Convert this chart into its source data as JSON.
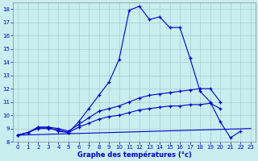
{
  "xlabel": "Graphe des températures (°c)",
  "background_color": "#c8eef0",
  "grid_color": "#aacccc",
  "line_color": "#0000cc",
  "xlim": [
    -0.5,
    23.5
  ],
  "ylim": [
    8,
    18.5
  ],
  "yticks": [
    8,
    9,
    10,
    11,
    12,
    13,
    14,
    15,
    16,
    17,
    18
  ],
  "xticks": [
    0,
    1,
    2,
    3,
    4,
    5,
    6,
    7,
    8,
    9,
    10,
    11,
    12,
    13,
    14,
    15,
    16,
    17,
    18,
    19,
    20,
    21,
    22,
    23
  ],
  "series_main": {
    "x": [
      0,
      1,
      2,
      3,
      4,
      5,
      6,
      7,
      8,
      9,
      10,
      11,
      12,
      13,
      14,
      15,
      16,
      17,
      18,
      19,
      20,
      21,
      22
    ],
    "y": [
      8.5,
      8.7,
      9.1,
      9.1,
      8.8,
      8.7,
      9.5,
      10.5,
      11.5,
      12.5,
      14.2,
      17.9,
      18.2,
      17.2,
      17.4,
      16.6,
      16.6,
      14.3,
      11.8,
      11.0,
      9.5,
      8.3,
      8.8
    ]
  },
  "series_upper_diag": {
    "x": [
      0,
      1,
      2,
      3,
      4,
      5,
      6,
      7,
      8,
      9,
      10,
      11,
      12,
      13,
      14,
      15,
      16,
      17,
      18,
      19,
      20
    ],
    "y": [
      8.5,
      8.7,
      9.1,
      9.1,
      9.0,
      8.8,
      9.3,
      9.8,
      10.3,
      10.5,
      10.7,
      11.0,
      11.3,
      11.5,
      11.6,
      11.7,
      11.8,
      11.9,
      12.0,
      12.0,
      11.0
    ]
  },
  "series_lower_diag": {
    "x": [
      0,
      1,
      2,
      3,
      4,
      5,
      6,
      7,
      8,
      9,
      10,
      11,
      12,
      13,
      14,
      15,
      16,
      17,
      18,
      19,
      20
    ],
    "y": [
      8.5,
      8.7,
      9.0,
      9.0,
      8.9,
      8.7,
      9.1,
      9.4,
      9.7,
      9.9,
      10.0,
      10.2,
      10.4,
      10.5,
      10.6,
      10.7,
      10.7,
      10.8,
      10.8,
      10.9,
      10.5
    ]
  },
  "series_flat": {
    "x": [
      0,
      23
    ],
    "y": [
      8.5,
      9.0
    ]
  }
}
